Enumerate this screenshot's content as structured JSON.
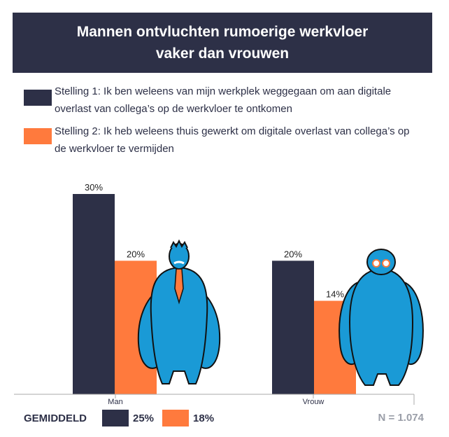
{
  "title": "Mannen ontvluchten rumoerige werkvloer vaker dan vrouwen",
  "colors": {
    "stelling1": "#2d3047",
    "stelling2": "#ff7a3d",
    "figure": "#1a9ad6"
  },
  "legend": [
    {
      "label": "Stelling 1: Ik ben weleens van mijn werkplek weggegaan om aan digitale overlast van collega’s op de werkvloer te ontkomen"
    },
    {
      "label": "Stelling 2: Ik heb weleens thuis gewerkt om digitale overlast van collega’s op de werkvloer te vermijden"
    }
  ],
  "chart_data": {
    "type": "bar",
    "categories": [
      "Man",
      "Vrouw"
    ],
    "series": [
      {
        "name": "Stelling 1",
        "values": [
          30,
          20
        ],
        "labels": [
          "30%",
          "20%"
        ]
      },
      {
        "name": "Stelling 2",
        "values": [
          20,
          14
        ],
        "labels": [
          "20%",
          "14%"
        ]
      }
    ],
    "ylim": [
      0,
      30
    ],
    "title": "Mannen ontvluchten rumoerige werkvloer vaker dan vrouwen",
    "xlabel": "",
    "ylabel": "",
    "grid": false,
    "legend_position": "top"
  },
  "average": {
    "label": "GEMIDDELD",
    "stelling1": "25%",
    "stelling2": "18%"
  },
  "sample": "N = 1.074"
}
